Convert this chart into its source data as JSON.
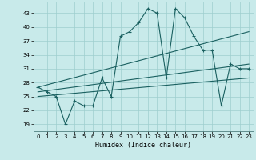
{
  "title": "",
  "xlabel": "Humidex (Indice chaleur)",
  "bg_color": "#c8eaea",
  "grid_color": "#9ecece",
  "line_color": "#1a6060",
  "xlim": [
    -0.5,
    23.5
  ],
  "ylim": [
    17.5,
    45.5
  ],
  "yticks": [
    19,
    22,
    25,
    28,
    31,
    34,
    37,
    40,
    43
  ],
  "xticks": [
    0,
    1,
    2,
    3,
    4,
    5,
    6,
    7,
    8,
    9,
    10,
    11,
    12,
    13,
    14,
    15,
    16,
    17,
    18,
    19,
    20,
    21,
    22,
    23
  ],
  "series1_x": [
    0,
    1,
    2,
    3,
    4,
    5,
    6,
    7,
    8,
    9,
    10,
    11,
    12,
    13,
    14,
    15,
    16,
    17,
    18,
    19,
    20,
    21,
    22,
    23
  ],
  "series1_y": [
    27,
    26,
    25,
    19,
    24,
    23,
    23,
    29,
    25,
    38,
    39,
    41,
    44,
    43,
    29,
    44,
    42,
    38,
    35,
    35,
    23,
    32,
    31,
    31
  ],
  "trend1_x": [
    0,
    23
  ],
  "trend1_y": [
    27,
    39
  ],
  "trend2_x": [
    0,
    23
  ],
  "trend2_y": [
    26,
    32
  ],
  "trend3_x": [
    0,
    23
  ],
  "trend3_y": [
    25,
    29
  ]
}
